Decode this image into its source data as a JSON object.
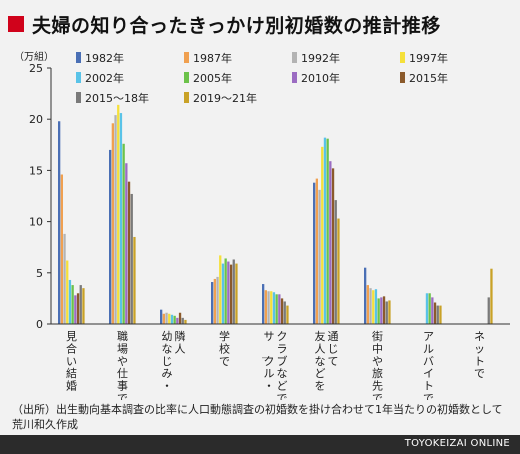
{
  "header": {
    "title": "夫婦の知り合ったきっかけ別初婚数の推計推移",
    "accent_color": "#d0021b"
  },
  "source_note": "（出所）出生動向基本調査の比率に人口動態調査の初婚数を掛け合わせて1年当たりの初婚数として荒川和久作成",
  "footer": {
    "brand": "TOYOKEIZAI ONLINE"
  },
  "chart_data": {
    "type": "bar",
    "unit": "（万組）",
    "ylim": [
      0,
      25
    ],
    "yticks": [
      0,
      5,
      10,
      15,
      20,
      25
    ],
    "grid": false,
    "legend_position": "top-right",
    "categories": [
      "見合い結婚",
      "職場や仕事で",
      "幼なじみ・隣人",
      "学校で",
      "サークル・クラブなどで",
      "友人などを通じて",
      "街中や旅先で",
      "アルバイトで",
      "ネットで"
    ],
    "category_lines": [
      [
        "見合い結婚"
      ],
      [
        "職場や仕事で"
      ],
      [
        "幼なじみ・",
        "隣人"
      ],
      [
        "学校で"
      ],
      [
        "サークル・",
        "クラブなどで"
      ],
      [
        "友人などを",
        "通じて"
      ],
      [
        "街中や旅先で"
      ],
      [
        "アルバイトで"
      ],
      [
        "ネットで"
      ]
    ],
    "series": [
      {
        "name": "1982年",
        "color": "#4a6fb5",
        "values": [
          19.8,
          17.0,
          1.4,
          4.1,
          3.9,
          13.8,
          5.5,
          0,
          0
        ]
      },
      {
        "name": "1987年",
        "color": "#f0a050",
        "values": [
          14.6,
          19.6,
          1.0,
          4.4,
          3.3,
          14.2,
          3.8,
          0,
          0
        ]
      },
      {
        "name": "1992年",
        "color": "#b3b3b3",
        "values": [
          8.8,
          20.4,
          1.1,
          4.6,
          3.2,
          13.1,
          3.5,
          0,
          0
        ]
      },
      {
        "name": "1997年",
        "color": "#f5e03a",
        "values": [
          6.2,
          21.4,
          1.0,
          6.7,
          3.2,
          17.3,
          3.3,
          0,
          0
        ]
      },
      {
        "name": "2002年",
        "color": "#59c3e8",
        "values": [
          4.3,
          20.6,
          0.9,
          5.9,
          3.1,
          18.2,
          3.4,
          3.0,
          0
        ]
      },
      {
        "name": "2005年",
        "color": "#6cc24a",
        "values": [
          3.8,
          17.6,
          0.8,
          6.4,
          2.9,
          18.1,
          2.5,
          3.0,
          0
        ]
      },
      {
        "name": "2010年",
        "color": "#9b6cc2",
        "values": [
          2.8,
          15.7,
          0.6,
          6.1,
          2.9,
          15.9,
          2.6,
          2.6,
          0
        ]
      },
      {
        "name": "2015年",
        "color": "#8b5a2b",
        "values": [
          3.0,
          13.9,
          1.1,
          5.8,
          2.5,
          15.2,
          2.7,
          2.1,
          0
        ]
      },
      {
        "name": "2015～18年",
        "color": "#7a7a7a",
        "values": [
          3.8,
          12.7,
          0.6,
          6.3,
          2.2,
          12.1,
          2.2,
          1.8,
          2.6
        ]
      },
      {
        "name": "2019～21年",
        "color": "#c9a227",
        "values": [
          3.5,
          8.5,
          0.4,
          5.9,
          1.8,
          10.3,
          2.3,
          1.8,
          5.4
        ]
      }
    ]
  }
}
